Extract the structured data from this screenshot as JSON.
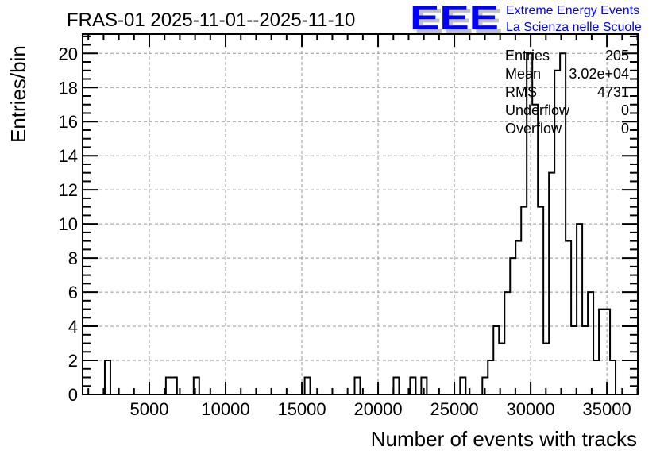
{
  "title": "FRAS-01 2025-11-01--2025-11-10",
  "logo": {
    "text": "EEE",
    "line1": "Extreme Energy Events",
    "line2": "La Scienza nelle Scuole",
    "color": "#0000ff",
    "shadow_color": "#c0c0c0"
  },
  "stats": {
    "rows": [
      {
        "label": "Entries",
        "value": "205"
      },
      {
        "label": "Mean",
        "value": "3.02e+04"
      },
      {
        "label": "RMS",
        "value": "4731"
      },
      {
        "label": "Underflow",
        "value": "0"
      },
      {
        "label": "Overflow",
        "value": "0"
      }
    ]
  },
  "chart_data": {
    "type": "bar",
    "style": "step-histogram",
    "title": "FRAS-01 2025-11-01--2025-11-10",
    "xlabel": "Number of events with tracks",
    "ylabel": "Entries/bin",
    "xlim": [
      625,
      37025
    ],
    "ylim": [
      0,
      21.13
    ],
    "bin_width": 364,
    "nbins": 100,
    "xticks": [
      5000,
      10000,
      15000,
      20000,
      25000,
      30000,
      35000
    ],
    "yticks": [
      0,
      2,
      4,
      6,
      8,
      10,
      12,
      14,
      16,
      18,
      20
    ],
    "grid": true,
    "nonzero_bins": [
      {
        "bin": 4,
        "count": 2
      },
      {
        "bin": 15,
        "count": 1
      },
      {
        "bin": 16,
        "count": 1
      },
      {
        "bin": 20,
        "count": 1
      },
      {
        "bin": 40,
        "count": 1
      },
      {
        "bin": 49,
        "count": 1
      },
      {
        "bin": 56,
        "count": 1
      },
      {
        "bin": 59,
        "count": 1
      },
      {
        "bin": 61,
        "count": 1
      },
      {
        "bin": 68,
        "count": 1
      },
      {
        "bin": 72,
        "count": 1
      },
      {
        "bin": 73,
        "count": 2
      },
      {
        "bin": 74,
        "count": 4
      },
      {
        "bin": 75,
        "count": 3
      },
      {
        "bin": 76,
        "count": 6
      },
      {
        "bin": 77,
        "count": 8
      },
      {
        "bin": 78,
        "count": 9
      },
      {
        "bin": 79,
        "count": 11
      },
      {
        "bin": 80,
        "count": 20
      },
      {
        "bin": 81,
        "count": 17
      },
      {
        "bin": 82,
        "count": 11
      },
      {
        "bin": 83,
        "count": 3
      },
      {
        "bin": 84,
        "count": 13
      },
      {
        "bin": 85,
        "count": 19
      },
      {
        "bin": 86,
        "count": 20
      },
      {
        "bin": 87,
        "count": 9
      },
      {
        "bin": 88,
        "count": 4
      },
      {
        "bin": 89,
        "count": 10
      },
      {
        "bin": 90,
        "count": 4
      },
      {
        "bin": 91,
        "count": 6
      },
      {
        "bin": 92,
        "count": 2
      },
      {
        "bin": 93,
        "count": 5
      },
      {
        "bin": 94,
        "count": 5
      },
      {
        "bin": 95,
        "count": 2
      }
    ]
  }
}
